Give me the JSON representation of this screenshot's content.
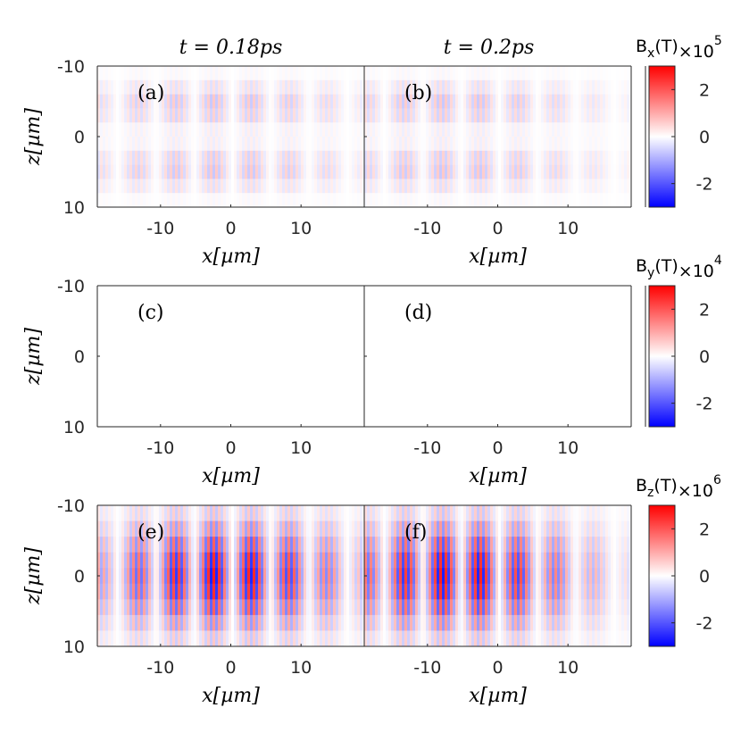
{
  "chart_data": {
    "type": "heatmap",
    "column_titles": [
      "t = 0.18ps",
      "t = 0.2ps"
    ],
    "x_range": [
      -19,
      19
    ],
    "z_range": [
      -10,
      10
    ],
    "x_ticks": [
      -10,
      0,
      10
    ],
    "z_ticks": [
      -10,
      0,
      10
    ],
    "xlabel": "x[µm]",
    "ylabel": "z[µm]",
    "z_axis_reversed": true,
    "rows": [
      {
        "field": "Bx",
        "colorbar_label_main": "B",
        "colorbar_label_sub": "x",
        "colorbar_label_unit": "(T)",
        "colorbar_scale": "×10",
        "colorbar_exponent": "5",
        "colorbar_ticks": [
          2,
          0,
          -2
        ],
        "colorbar_range": [
          -3,
          3
        ],
        "panels": [
          {
            "label": "(a)",
            "pattern": "split",
            "peak_intensity": 0.22,
            "center_x": -2,
            "width_x": 22
          },
          {
            "label": "(b)",
            "pattern": "split",
            "peak_intensity": 0.22,
            "center_x": -7,
            "width_x": 22
          }
        ]
      },
      {
        "field": "By",
        "colorbar_label_main": "B",
        "colorbar_label_sub": "y",
        "colorbar_label_unit": "(T)",
        "colorbar_scale": "×10",
        "colorbar_exponent": "4",
        "colorbar_ticks": [
          2,
          0,
          -2
        ],
        "colorbar_range": [
          -3,
          3
        ],
        "panels": [
          {
            "label": "(c)",
            "pattern": "none",
            "peak_intensity": 0,
            "center_x": 0,
            "width_x": 1
          },
          {
            "label": "(d)",
            "pattern": "none",
            "peak_intensity": 0,
            "center_x": 0,
            "width_x": 1
          }
        ]
      },
      {
        "field": "Bz",
        "colorbar_label_main": "B",
        "colorbar_label_sub": "z",
        "colorbar_label_unit": "(T)",
        "colorbar_scale": "×10",
        "colorbar_exponent": "6",
        "colorbar_ticks": [
          2,
          0,
          -2
        ],
        "colorbar_range": [
          -3,
          3
        ],
        "panels": [
          {
            "label": "(e)",
            "pattern": "center",
            "peak_intensity": 0.9,
            "center_x": -1,
            "width_x": 18
          },
          {
            "label": "(f)",
            "pattern": "center",
            "peak_intensity": 0.9,
            "center_x": -6,
            "width_x": 18
          }
        ]
      }
    ]
  }
}
